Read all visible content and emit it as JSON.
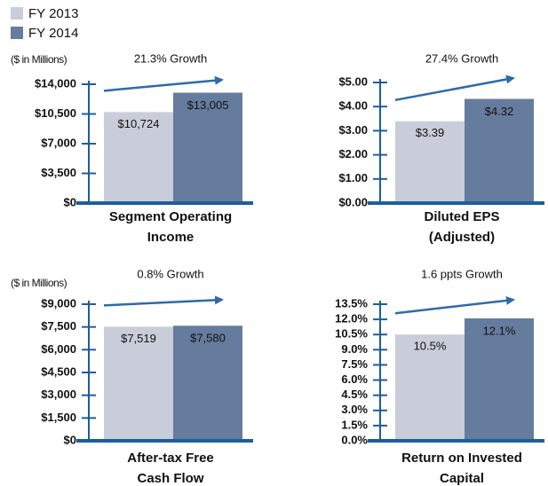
{
  "legend": {
    "items": [
      {
        "name": "FY 2013",
        "color": "#c9cdda"
      },
      {
        "name": "FY 2014",
        "color": "#667c9e"
      }
    ]
  },
  "chart_data": [
    {
      "type": "bar",
      "title": [
        "Segment Operating",
        "Income"
      ],
      "unit_label": "($ in Millions)",
      "annotation": "21.3% Growth",
      "values": [
        10724,
        13005
      ],
      "value_labels": [
        "$10,724",
        "$13,005"
      ],
      "colors": [
        "#c9cdda",
        "#667c9e"
      ],
      "ylim": [
        0,
        14000
      ],
      "yticks": [
        {
          "value": 0,
          "label": "$0"
        },
        {
          "value": 3500,
          "label": "$3,500"
        },
        {
          "value": 7000,
          "label": "$7,000"
        },
        {
          "value": 10500,
          "label": "$10,500"
        },
        {
          "value": 14000,
          "label": "$14,000"
        }
      ]
    },
    {
      "type": "bar",
      "title": [
        "Diluted EPS",
        "(Adjusted)"
      ],
      "annotation": "27.4% Growth",
      "values": [
        3.39,
        4.32
      ],
      "value_labels": [
        "$3.39",
        "$4.32"
      ],
      "colors": [
        "#c9cdda",
        "#667c9e"
      ],
      "ylim": [
        0,
        5
      ],
      "yticks": [
        {
          "value": 0,
          "label": "$0.00"
        },
        {
          "value": 1,
          "label": "$1.00"
        },
        {
          "value": 2,
          "label": "$2.00"
        },
        {
          "value": 3,
          "label": "$3.00"
        },
        {
          "value": 4,
          "label": "$4.00"
        },
        {
          "value": 5,
          "label": "$5.00"
        }
      ]
    },
    {
      "type": "bar",
      "title": [
        "After-tax Free",
        "Cash Flow"
      ],
      "unit_label": "($ in Millions)",
      "annotation": "0.8% Growth",
      "values": [
        7519,
        7580
      ],
      "value_labels": [
        "$7,519",
        "$7,580"
      ],
      "colors": [
        "#c9cdda",
        "#667c9e"
      ],
      "ylim": [
        0,
        9000
      ],
      "yticks": [
        {
          "value": 0,
          "label": "$0"
        },
        {
          "value": 1500,
          "label": "$1,500"
        },
        {
          "value": 3000,
          "label": "$3,000"
        },
        {
          "value": 4500,
          "label": "$4,500"
        },
        {
          "value": 6000,
          "label": "$6,000"
        },
        {
          "value": 7500,
          "label": "$7,500"
        },
        {
          "value": 9000,
          "label": "$9,000"
        }
      ]
    },
    {
      "type": "bar",
      "title": [
        "Return on Invested",
        "Capital"
      ],
      "annotation": "1.6 ppts Growth",
      "values": [
        10.5,
        12.1
      ],
      "value_labels": [
        "10.5%",
        "12.1%"
      ],
      "colors": [
        "#c9cdda",
        "#667c9e"
      ],
      "ylim": [
        0,
        13.5
      ],
      "yticks": [
        {
          "value": 0,
          "label": "0.0%"
        },
        {
          "value": 1.5,
          "label": "1.5%"
        },
        {
          "value": 3,
          "label": "3.0%"
        },
        {
          "value": 4.5,
          "label": "4.5%"
        },
        {
          "value": 6,
          "label": "6.0%"
        },
        {
          "value": 7.5,
          "label": "7.5%"
        },
        {
          "value": 9,
          "label": "9.0%"
        },
        {
          "value": 10.5,
          "label": "10.5%"
        },
        {
          "value": 12,
          "label": "12.0%"
        },
        {
          "value": 13.5,
          "label": "13.5%"
        }
      ]
    }
  ]
}
